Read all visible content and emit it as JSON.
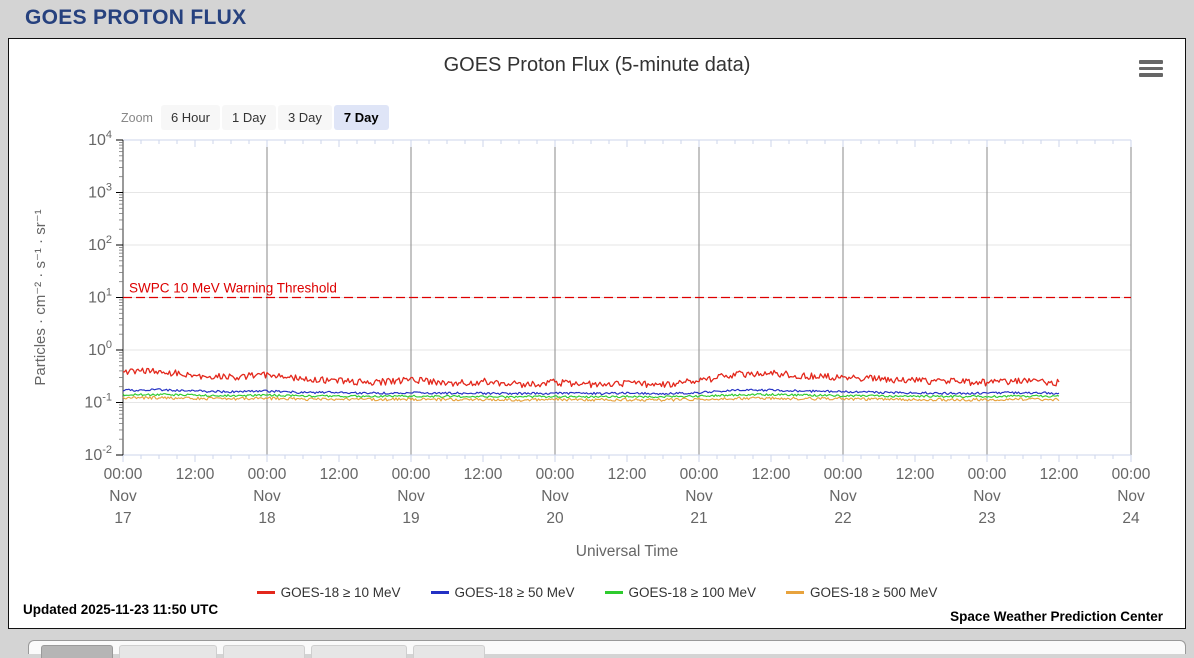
{
  "page": {
    "header_title": "GOES PROTON FLUX"
  },
  "panel": {
    "title": "GOES Proton Flux (5-minute data)",
    "toolbar": {
      "zoom_label": "Zoom",
      "buttons": [
        {
          "label": "6 Hour",
          "selected": false
        },
        {
          "label": "1 Day",
          "selected": false
        },
        {
          "label": "3 Day",
          "selected": false
        },
        {
          "label": "7 Day",
          "selected": true
        }
      ]
    },
    "footer": {
      "updated": "Updated 2025-11-23 11:50 UTC",
      "credit": "Space Weather Prediction Center"
    }
  },
  "colors": {
    "header_text": "#26417e",
    "threshold": "#dd0000",
    "grid_light": "#e6e6e6",
    "grid_day": "#8a8a8a",
    "axis_line": "#ccd6eb",
    "y_axis_line": "#333333",
    "tick_text": "#666666",
    "zoom_bg": "#f7f7f7",
    "zoom_selected_bg": "#dfe5f7"
  },
  "chart_data": {
    "type": "line",
    "title": "GOES Proton Flux (5-minute data)",
    "xlabel": "Universal Time",
    "ylabel": "Particles · cm⁻² · s⁻¹ · sr⁻¹",
    "y_axis": {
      "scale": "log",
      "min_exp": -2,
      "max_exp": 4
    },
    "x_axis": {
      "month": "Nov",
      "days": [
        17,
        18,
        19,
        20,
        21,
        22,
        23,
        24
      ],
      "total_hours": 168,
      "major_tick_hours": 12,
      "minor_tick_hours": 3,
      "midnight_label": "00:00",
      "noon_label": "12:00"
    },
    "threshold": {
      "label": "SWPC 10 MeV Warning Threshold",
      "value": 10
    },
    "data_end_hours": 156,
    "noise": {
      "seed": 20251123,
      "step_hours": 0.25
    },
    "anchors_hours": [
      0,
      6,
      12,
      18,
      24,
      30,
      36,
      42,
      48,
      54,
      60,
      66,
      72,
      78,
      84,
      90,
      96,
      102,
      108,
      114,
      120,
      126,
      132,
      138,
      144,
      150,
      156
    ],
    "series": [
      {
        "name": "GOES-18 ≥ 10 MeV",
        "color": "#e3281c",
        "noise_log10": 0.065,
        "flux": [
          0.38,
          0.4,
          0.32,
          0.3,
          0.34,
          0.28,
          0.26,
          0.24,
          0.27,
          0.23,
          0.25,
          0.22,
          0.24,
          0.22,
          0.23,
          0.22,
          0.26,
          0.34,
          0.36,
          0.32,
          0.3,
          0.28,
          0.26,
          0.25,
          0.24,
          0.26,
          0.24
        ]
      },
      {
        "name": "GOES-18 ≥ 50 MeV",
        "color": "#2431c4",
        "noise_log10": 0.022,
        "flux": [
          0.17,
          0.175,
          0.165,
          0.16,
          0.165,
          0.155,
          0.155,
          0.15,
          0.155,
          0.15,
          0.15,
          0.148,
          0.15,
          0.148,
          0.15,
          0.148,
          0.155,
          0.17,
          0.172,
          0.165,
          0.16,
          0.155,
          0.152,
          0.15,
          0.15,
          0.155,
          0.15
        ]
      },
      {
        "name": "GOES-18 ≥ 100 MeV",
        "color": "#2fcb2f",
        "noise_log10": 0.02,
        "flux": [
          0.14,
          0.142,
          0.138,
          0.135,
          0.138,
          0.133,
          0.133,
          0.13,
          0.133,
          0.13,
          0.13,
          0.128,
          0.13,
          0.128,
          0.13,
          0.128,
          0.132,
          0.14,
          0.142,
          0.138,
          0.135,
          0.133,
          0.131,
          0.13,
          0.13,
          0.133,
          0.131
        ]
      },
      {
        "name": "GOES-18 ≥ 500 MeV",
        "color": "#e8a33d",
        "noise_log10": 0.028,
        "flux": [
          0.122,
          0.123,
          0.12,
          0.118,
          0.12,
          0.116,
          0.116,
          0.114,
          0.116,
          0.114,
          0.114,
          0.112,
          0.114,
          0.112,
          0.114,
          0.112,
          0.115,
          0.12,
          0.121,
          0.119,
          0.117,
          0.115,
          0.114,
          0.113,
          0.113,
          0.115,
          0.114
        ]
      }
    ],
    "legend_position": "bottom",
    "draw_order": [
      2,
      3,
      1,
      0
    ]
  }
}
